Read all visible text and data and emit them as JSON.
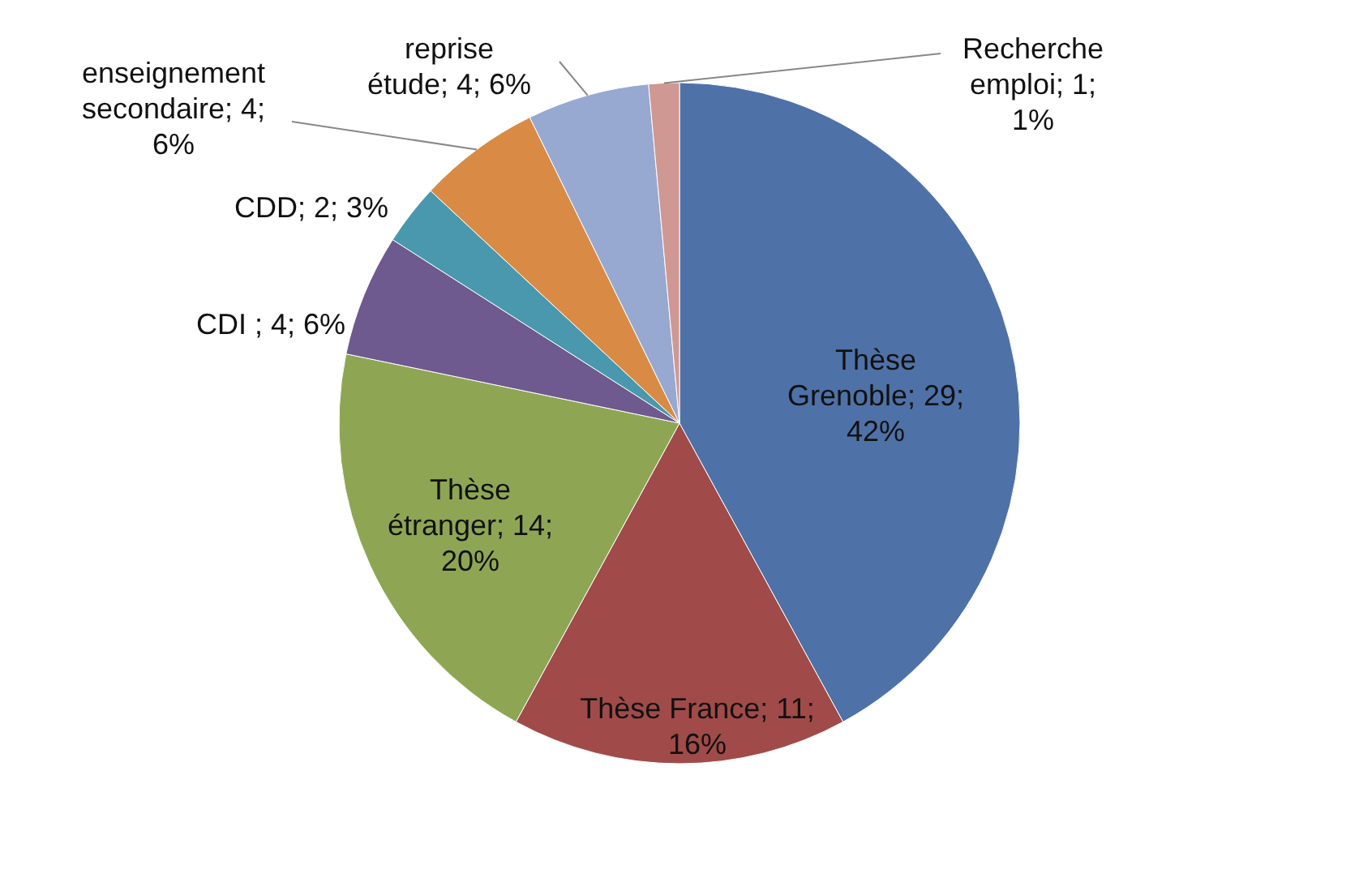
{
  "chart_data": {
    "type": "pie",
    "categories": [
      "Thèse Grenoble",
      "Thèse France",
      "Thèse étranger",
      "CDI ",
      "CDD",
      "enseignement secondaire",
      "reprise étude",
      "Recherche emploi"
    ],
    "values": [
      29,
      11,
      14,
      4,
      2,
      4,
      4,
      1
    ],
    "colors": [
      "#4e71a7",
      "#a04b49",
      "#8ea654",
      "#6e5a8e",
      "#4a98ad",
      "#d98b45",
      "#97a9d0",
      "#d09893"
    ],
    "value_labels": [
      "29; 42%",
      "11; 16%",
      "14; 20%",
      "4; 6%",
      "2; 3%",
      "4; 6%",
      "4; 6%",
      "1; 1%"
    ],
    "legend": false
  }
}
